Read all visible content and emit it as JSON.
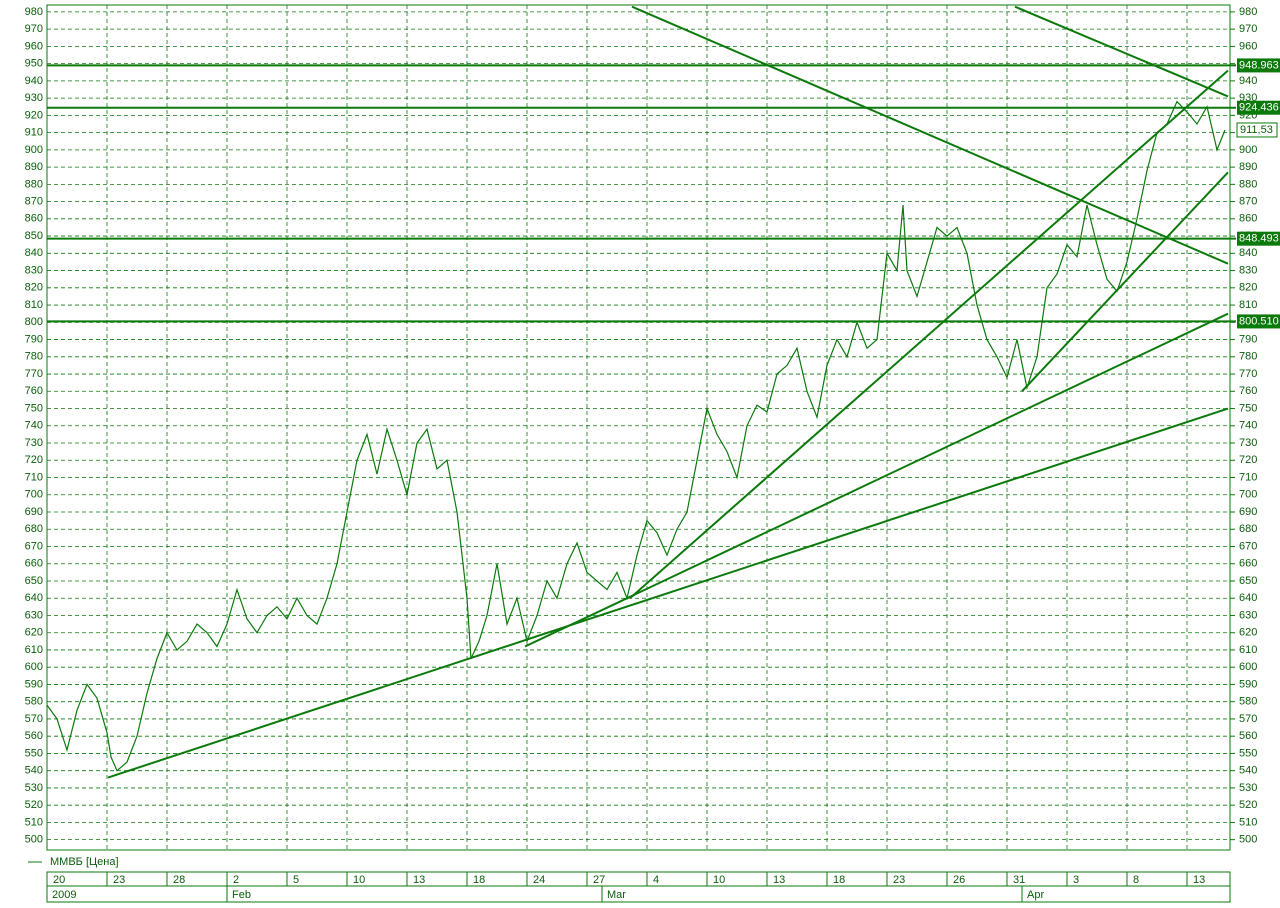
{
  "chart_data": {
    "type": "line",
    "x": [
      0,
      0.5,
      1,
      1.5,
      2,
      2.5,
      3,
      3.2,
      3.5,
      4,
      4.5,
      5,
      5.5,
      6,
      6.5,
      7,
      7.5,
      8,
      8.5,
      9,
      9.5,
      10,
      10.5,
      11,
      11.5,
      12,
      12.5,
      13,
      13.5,
      14,
      14.5,
      15,
      15.5,
      16,
      16.5,
      17,
      17.5,
      18,
      18.5,
      19,
      19.5,
      20,
      20.5,
      21,
      21.2,
      21.6,
      22,
      22.5,
      23,
      23.5,
      24,
      24.5,
      25,
      25.5,
      26,
      26.5,
      27,
      27.5,
      28,
      28.5,
      29,
      29.5,
      30,
      30.5,
      31,
      31.5,
      32,
      32.5,
      33,
      33.5,
      34,
      34.5,
      35,
      35.5,
      36,
      36.5,
      37,
      37.5,
      38,
      38.5,
      39,
      39.5,
      40,
      40.5,
      41,
      41.5,
      42,
      42.5,
      42.8,
      43,
      43.5,
      44,
      44.5,
      45,
      45.5,
      46,
      46.5,
      47,
      47.5,
      48,
      48.5,
      49,
      49.5,
      50,
      50.5,
      51,
      51.5,
      52,
      52.5,
      53,
      53.5,
      54,
      54.5,
      55,
      55.5,
      56,
      56.5,
      57,
      57.5,
      58,
      58.5,
      58.9
    ],
    "series": [
      {
        "name": "ММВБ [Цена]",
        "color": "#0b7a0b",
        "values": [
          578,
          570,
          552,
          575,
          590,
          582,
          562,
          548,
          540,
          545,
          560,
          585,
          605,
          620,
          610,
          615,
          625,
          620,
          612,
          625,
          645,
          628,
          620,
          630,
          635,
          628,
          640,
          630,
          625,
          640,
          660,
          690,
          720,
          735,
          712,
          738,
          720,
          700,
          730,
          738,
          715,
          720,
          690,
          640,
          605,
          615,
          630,
          660,
          625,
          640,
          615,
          630,
          650,
          640,
          660,
          672,
          655,
          650,
          645,
          655,
          640,
          665,
          685,
          678,
          665,
          680,
          690,
          720,
          750,
          735,
          725,
          710,
          740,
          752,
          748,
          770,
          775,
          785,
          760,
          745,
          775,
          790,
          780,
          800,
          785,
          790,
          840,
          830,
          868,
          830,
          815,
          835,
          855,
          850,
          855,
          840,
          810,
          790,
          780,
          768,
          790,
          762,
          780,
          820,
          828,
          845,
          838,
          868,
          845,
          825,
          818,
          835,
          860,
          888,
          910,
          915,
          928,
          922,
          915,
          925,
          900,
          911.53
        ]
      }
    ],
    "xlim": [
      0,
      59.15
    ],
    "ylim": [
      494,
      984
    ],
    "yticks": [
      500,
      510,
      520,
      530,
      540,
      550,
      560,
      570,
      580,
      590,
      600,
      610,
      620,
      630,
      640,
      650,
      660,
      670,
      680,
      690,
      700,
      710,
      720,
      730,
      740,
      750,
      760,
      770,
      780,
      790,
      800,
      810,
      820,
      830,
      840,
      850,
      860,
      870,
      880,
      890,
      900,
      910,
      920,
      930,
      940,
      950,
      960,
      970,
      980
    ],
    "xticks": [
      {
        "value": 0,
        "label": "20"
      },
      {
        "value": 3,
        "label": "23"
      },
      {
        "value": 6,
        "label": "28"
      },
      {
        "value": 9,
        "label": "2"
      },
      {
        "value": 12,
        "label": "5"
      },
      {
        "value": 15,
        "label": "10"
      },
      {
        "value": 18,
        "label": "13"
      },
      {
        "value": 21,
        "label": "18"
      },
      {
        "value": 24,
        "label": "24"
      },
      {
        "value": 27,
        "label": "27"
      },
      {
        "value": 30,
        "label": "4"
      },
      {
        "value": 33,
        "label": "10"
      },
      {
        "value": 36,
        "label": "13"
      },
      {
        "value": 39,
        "label": "18"
      },
      {
        "value": 42,
        "label": "23"
      },
      {
        "value": 45,
        "label": "26"
      },
      {
        "value": 48,
        "label": "31"
      },
      {
        "value": 51,
        "label": "3"
      },
      {
        "value": 54,
        "label": "8"
      },
      {
        "value": 57,
        "label": "13"
      }
    ],
    "month_ticks": [
      {
        "value": 0,
        "label": "2009"
      },
      {
        "value": 9,
        "label": "Feb"
      },
      {
        "value": 27.75,
        "label": "Mar"
      },
      {
        "value": 48.75,
        "label": "Apr"
      }
    ],
    "levels": [
      {
        "value": 948.9631,
        "label": "948.963"
      },
      {
        "value": 924.436,
        "label": "924.436"
      },
      {
        "value": 848.4938,
        "label": "848.493"
      },
      {
        "value": 800.51,
        "label": "800.510"
      }
    ],
    "last_price": {
      "value": 911.53,
      "label": "911,53"
    },
    "trend_lines": [
      {
        "x": [
          3.05,
          59.05
        ],
        "values": [
          536,
          750
        ]
      },
      {
        "x": [
          23.9,
          59.05
        ],
        "values": [
          612,
          805
        ]
      },
      {
        "x": [
          29.15,
          59.05
        ],
        "values": [
          640,
          946
        ]
      },
      {
        "x": [
          48.75,
          59.05
        ],
        "values": [
          760,
          887
        ]
      },
      {
        "x": [
          29.25,
          59.05
        ],
        "values": [
          983,
          834
        ]
      },
      {
        "x": [
          48.4,
          59.05
        ],
        "values": [
          983,
          931
        ]
      }
    ],
    "grid": true
  }
}
